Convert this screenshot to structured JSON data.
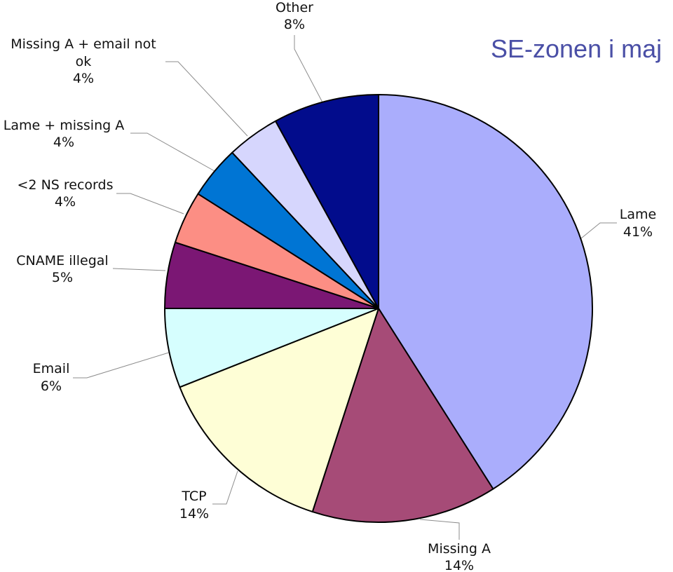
{
  "chart_data": {
    "type": "pie",
    "title": "SE-zonen i maj",
    "title_color": "#4a4fa6",
    "start_angle_deg": 0,
    "direction": "clockwise",
    "slices": [
      {
        "label": "Lame",
        "value": 41,
        "color": "#aaadfc"
      },
      {
        "label": "Missing A",
        "value": 14,
        "color": "#a64b77"
      },
      {
        "label": "TCP",
        "value": 14,
        "color": "#fefed6"
      },
      {
        "label": "Email",
        "value": 6,
        "color": "#d6fefe"
      },
      {
        "label": "CNAME illegal",
        "value": 5,
        "color": "#7b1774"
      },
      {
        "label": "<2 NS records",
        "value": 4,
        "color": "#fc8e84"
      },
      {
        "label": "Lame + missing A",
        "value": 4,
        "color": "#0075d4"
      },
      {
        "label": "Missing A + email not ok",
        "value": 4,
        "color": "#d6d6fd"
      },
      {
        "label": "Other",
        "value": 8,
        "color": "#020c8c"
      }
    ]
  }
}
